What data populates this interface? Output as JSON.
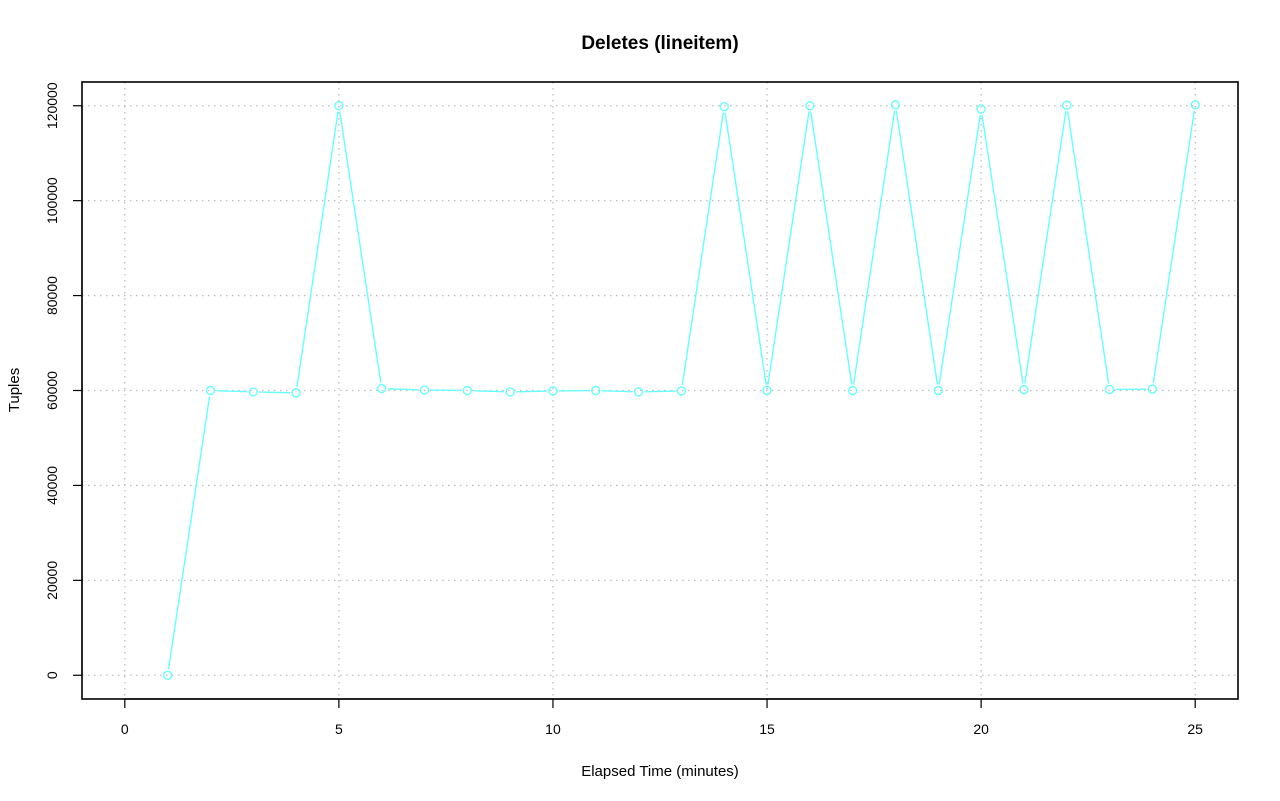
{
  "chart_data": {
    "type": "line",
    "title": "Deletes (lineitem)",
    "xlabel": "Elapsed Time (minutes)",
    "ylabel": "Tuples",
    "xlim": [
      -1,
      26
    ],
    "ylim": [
      -5000,
      125000
    ],
    "xticks": [
      0,
      5,
      10,
      15,
      20,
      25
    ],
    "yticks": [
      0,
      20000,
      40000,
      60000,
      80000,
      100000,
      120000
    ],
    "grid": true,
    "series": [
      {
        "color": "#66ffff",
        "x": [
          1,
          2,
          3,
          4,
          5,
          6,
          7,
          8,
          9,
          10,
          11,
          12,
          13,
          14,
          15,
          16,
          17,
          18,
          19,
          20,
          21,
          22,
          23,
          24,
          25
        ],
        "values": [
          0,
          60000,
          59700,
          59500,
          120000,
          60400,
          60100,
          60000,
          59700,
          59900,
          60000,
          59700,
          59900,
          119800,
          60000,
          120000,
          60000,
          120200,
          60000,
          119300,
          60200,
          120100,
          60200,
          60300,
          120200
        ]
      }
    ]
  }
}
